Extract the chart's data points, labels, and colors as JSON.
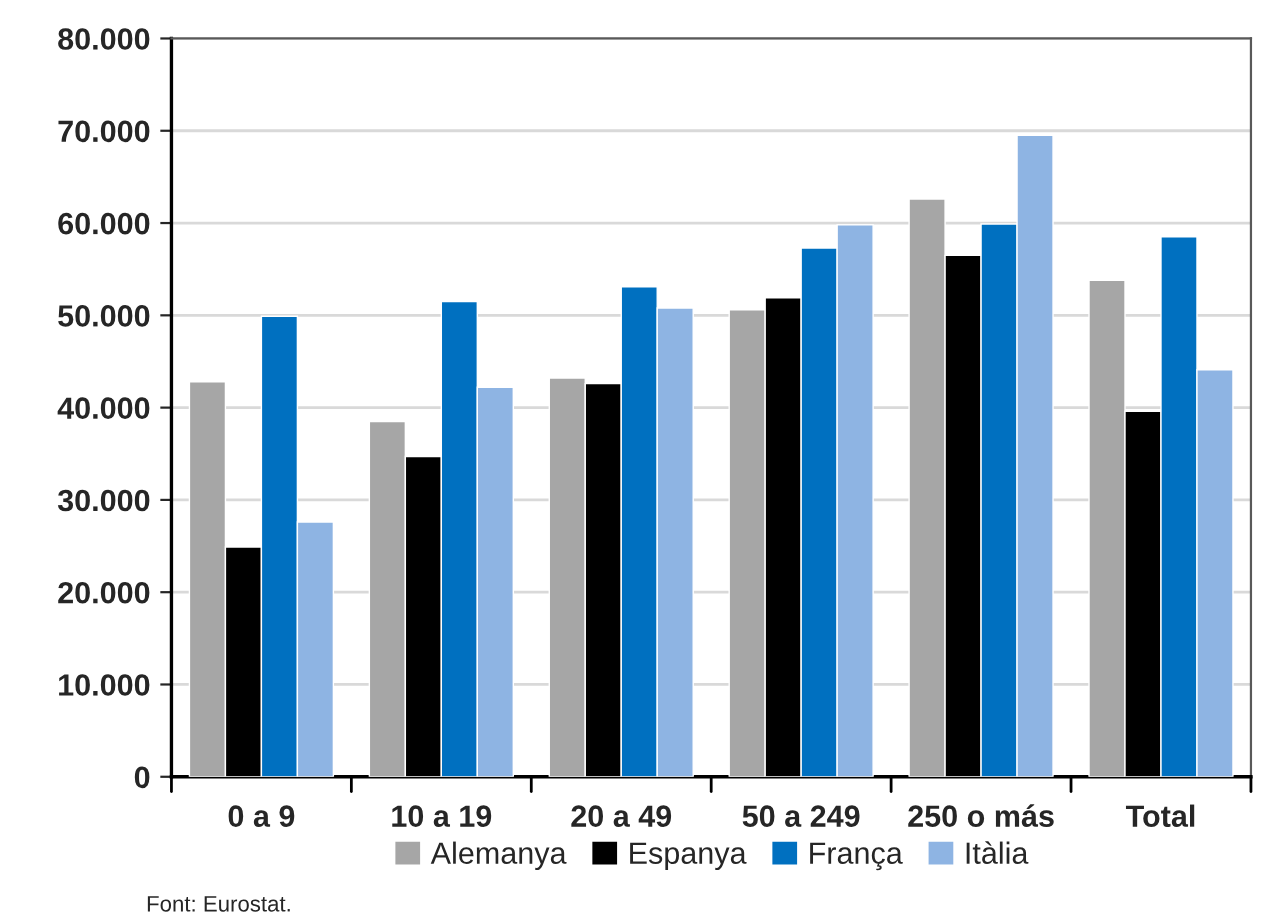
{
  "chart_data": {
    "type": "bar",
    "categories": [
      "0 a 9",
      "10 a 19",
      "20 a 49",
      "50 a 249",
      "250 o más",
      "Total"
    ],
    "series": [
      {
        "name": "Alemanya",
        "color": "#a6a6a6",
        "values": [
          42800,
          38500,
          43200,
          50600,
          62600,
          53800
        ]
      },
      {
        "name": "Espanya",
        "color": "#000000",
        "values": [
          24900,
          34700,
          42600,
          51900,
          56500,
          39600
        ]
      },
      {
        "name": "França",
        "color": "#0070c0",
        "values": [
          49900,
          51500,
          53100,
          57300,
          59900,
          58500
        ]
      },
      {
        "name": "Itàlia",
        "color": "#8eb4e3",
        "values": [
          27600,
          42200,
          50800,
          59800,
          69500,
          44100
        ]
      }
    ],
    "ylim": [
      0,
      80000
    ],
    "yticks": [
      {
        "value": 0,
        "label": "0"
      },
      {
        "value": 10000,
        "label": "10.000"
      },
      {
        "value": 20000,
        "label": "20.000"
      },
      {
        "value": 30000,
        "label": "30.000"
      },
      {
        "value": 40000,
        "label": "40.000"
      },
      {
        "value": 50000,
        "label": "50.000"
      },
      {
        "value": 60000,
        "label": "60.000"
      },
      {
        "value": 70000,
        "label": "70.000"
      },
      {
        "value": 80000,
        "label": "80.000"
      }
    ],
    "grid": "y",
    "legend": "bottom",
    "annotations": [
      "Font: Eurostat."
    ]
  }
}
